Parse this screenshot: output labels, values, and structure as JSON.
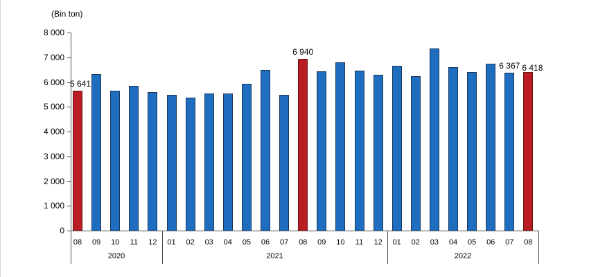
{
  "unit_label": "(Bin ton)",
  "colors": {
    "bar_blue": "#1F6DBE",
    "bar_blue_border": "#17375E",
    "bar_red": "#B91C22",
    "bar_red_border": "#641414",
    "axis": "#4d4d4d"
  },
  "chart_data": {
    "type": "bar",
    "title": "",
    "unit_label": "(Bin ton)",
    "xlabel": "",
    "ylabel": "(Bin ton)",
    "ylim": [
      0,
      8000
    ],
    "ytick_step": 1000,
    "grid": false,
    "legend": false,
    "ytick_labels": [
      "0",
      "1 000",
      "2 000",
      "3 000",
      "4 000",
      "5 000",
      "6 000",
      "7 000",
      "8 000"
    ],
    "groups": [
      {
        "year": "2020",
        "months": [
          "08",
          "09",
          "10",
          "11",
          "12"
        ]
      },
      {
        "year": "2021",
        "months": [
          "01",
          "02",
          "03",
          "04",
          "05",
          "06",
          "07",
          "08",
          "09",
          "10",
          "11",
          "12"
        ]
      },
      {
        "year": "2022",
        "months": [
          "01",
          "02",
          "03",
          "04",
          "05",
          "06",
          "07",
          "08"
        ]
      }
    ],
    "points": [
      {
        "year": "2020",
        "month": "08",
        "value": 5641,
        "highlight": true,
        "label": "5 641"
      },
      {
        "year": "2020",
        "month": "09",
        "value": 6320,
        "highlight": false,
        "label": null
      },
      {
        "year": "2020",
        "month": "10",
        "value": 5650,
        "highlight": false,
        "label": null
      },
      {
        "year": "2020",
        "month": "11",
        "value": 5850,
        "highlight": false,
        "label": null
      },
      {
        "year": "2020",
        "month": "12",
        "value": 5600,
        "highlight": false,
        "label": null
      },
      {
        "year": "2021",
        "month": "01",
        "value": 5480,
        "highlight": false,
        "label": null
      },
      {
        "year": "2021",
        "month": "02",
        "value": 5360,
        "highlight": false,
        "label": null
      },
      {
        "year": "2021",
        "month": "03",
        "value": 5530,
        "highlight": false,
        "label": null
      },
      {
        "year": "2021",
        "month": "04",
        "value": 5550,
        "highlight": false,
        "label": null
      },
      {
        "year": "2021",
        "month": "05",
        "value": 5940,
        "highlight": false,
        "label": null
      },
      {
        "year": "2021",
        "month": "06",
        "value": 6500,
        "highlight": false,
        "label": null
      },
      {
        "year": "2021",
        "month": "07",
        "value": 5470,
        "highlight": false,
        "label": null
      },
      {
        "year": "2021",
        "month": "08",
        "value": 6940,
        "highlight": true,
        "label": "6 940"
      },
      {
        "year": "2021",
        "month": "09",
        "value": 6430,
        "highlight": false,
        "label": null
      },
      {
        "year": "2021",
        "month": "10",
        "value": 6810,
        "highlight": false,
        "label": null
      },
      {
        "year": "2021",
        "month": "11",
        "value": 6470,
        "highlight": false,
        "label": null
      },
      {
        "year": "2021",
        "month": "12",
        "value": 6290,
        "highlight": false,
        "label": null
      },
      {
        "year": "2022",
        "month": "01",
        "value": 6670,
        "highlight": false,
        "label": null
      },
      {
        "year": "2022",
        "month": "02",
        "value": 6250,
        "highlight": false,
        "label": null
      },
      {
        "year": "2022",
        "month": "03",
        "value": 7360,
        "highlight": false,
        "label": null
      },
      {
        "year": "2022",
        "month": "04",
        "value": 6610,
        "highlight": false,
        "label": null
      },
      {
        "year": "2022",
        "month": "05",
        "value": 6400,
        "highlight": false,
        "label": null
      },
      {
        "year": "2022",
        "month": "06",
        "value": 6730,
        "highlight": false,
        "label": null
      },
      {
        "year": "2022",
        "month": "07",
        "value": 6367,
        "highlight": false,
        "label": "6 367"
      },
      {
        "year": "2022",
        "month": "08",
        "value": 6418,
        "highlight": true,
        "label": "6 418"
      }
    ]
  }
}
